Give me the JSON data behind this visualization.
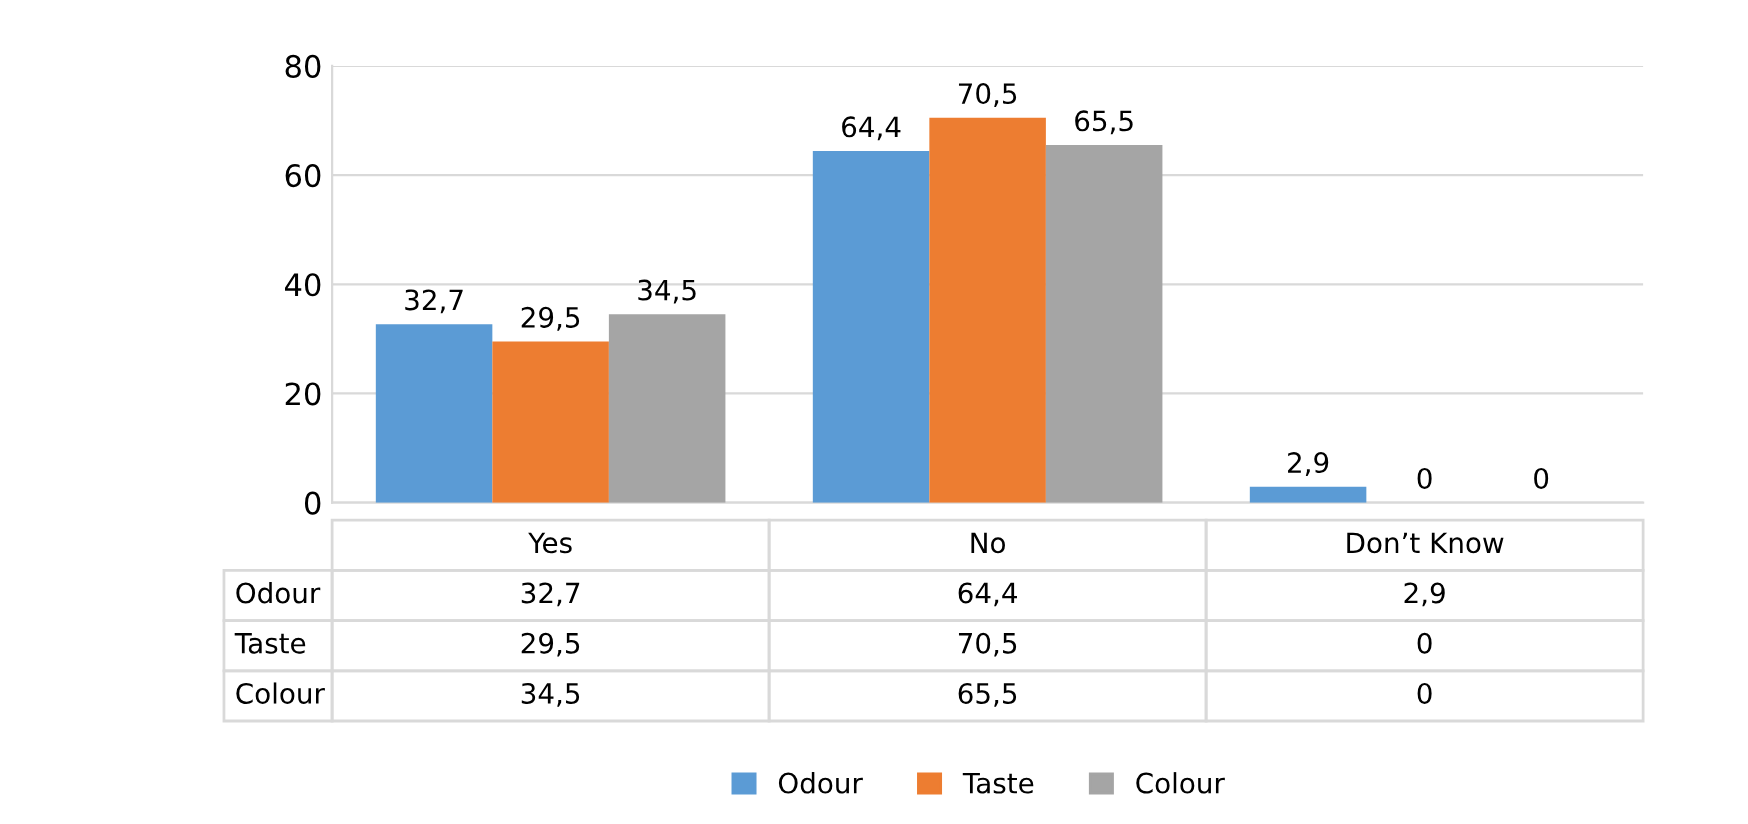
{
  "chart_data": {
    "type": "bar",
    "categories": [
      "Yes",
      "No",
      "Don’t Know"
    ],
    "series": [
      {
        "name": "Odour",
        "color": "#5b9bd5",
        "values": [
          32.7,
          64.4,
          2.9
        ],
        "value_labels": [
          "32,7",
          "64,4",
          "2,9"
        ]
      },
      {
        "name": "Taste",
        "color": "#ed7d31",
        "values": [
          29.5,
          70.5,
          0
        ],
        "value_labels": [
          "29,5",
          "70,5",
          "0"
        ]
      },
      {
        "name": "Colour",
        "color": "#a5a5a5",
        "values": [
          34.5,
          65.5,
          0
        ],
        "value_labels": [
          "34,5",
          "65,5",
          "0"
        ]
      }
    ],
    "ylim": [
      0,
      80
    ],
    "yticks": [
      0,
      20,
      40,
      60,
      80
    ],
    "grid": "y",
    "legend": "bottom"
  }
}
